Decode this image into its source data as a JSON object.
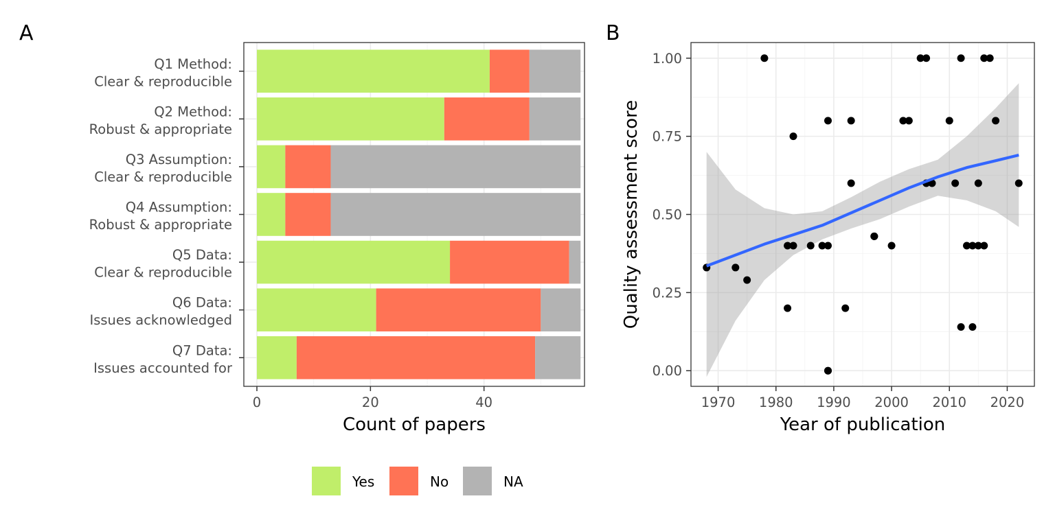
{
  "colors": {
    "yes": "#c0ee6a",
    "no": "#ff7355",
    "na": "#b3b3b3",
    "smooth_line": "#3366ff",
    "ribbon": "#999999",
    "point": "#000000",
    "grid_major": "#ebebeb",
    "grid_minor": "#f4f4f4",
    "panel_border": "#333333"
  },
  "chart_data": [
    {
      "panel": "A",
      "type": "bar",
      "orientation": "horizontal",
      "stacked": true,
      "xlabel": "Count of papers",
      "ylabel": "",
      "xlim": [
        -2.3,
        57.7
      ],
      "xticks": [
        0,
        20,
        40
      ],
      "grid": true,
      "legend_position": "bottom",
      "categories": [
        [
          "Q1 Method:",
          "Clear & reproducible"
        ],
        [
          "Q2 Method:",
          "Robust & appropriate"
        ],
        [
          "Q3 Assumption:",
          "Clear & reproducible"
        ],
        [
          "Q4 Assumption:",
          "Robust & appropriate"
        ],
        [
          "Q5 Data:",
          "Clear & reproducible"
        ],
        [
          "Q6 Data:",
          "Issues acknowledged"
        ],
        [
          "Q7 Data:",
          "Issues accounted for"
        ]
      ],
      "series": [
        {
          "name": "Yes",
          "color_key": "yes",
          "values": [
            41,
            33,
            5,
            5,
            34,
            21,
            7
          ]
        },
        {
          "name": "No",
          "color_key": "no",
          "values": [
            7,
            15,
            8,
            8,
            21,
            29,
            42
          ]
        },
        {
          "name": "NA",
          "color_key": "na",
          "values": [
            9,
            9,
            44,
            44,
            2,
            7,
            8
          ]
        }
      ]
    },
    {
      "panel": "B",
      "type": "scatter",
      "xlabel": "Year of publication",
      "ylabel": "Quality assessment score",
      "xlim": [
        1965.3,
        2024.7
      ],
      "ylim": [
        -0.05,
        1.05
      ],
      "xticks": [
        1970,
        1980,
        1990,
        2000,
        2010,
        2020
      ],
      "yticks": [
        "0.00",
        "0.25",
        "0.50",
        "0.75",
        "1.00"
      ],
      "grid": true,
      "points": [
        [
          1968,
          0.33
        ],
        [
          1973,
          0.33
        ],
        [
          1975,
          0.29
        ],
        [
          1978,
          1.0
        ],
        [
          1982,
          0.4
        ],
        [
          1982,
          0.2
        ],
        [
          1983,
          0.75
        ],
        [
          1983,
          0.4
        ],
        [
          1986,
          0.4
        ],
        [
          1988,
          0.4
        ],
        [
          1989,
          0.8
        ],
        [
          1989,
          0.4
        ],
        [
          1989,
          0.0
        ],
        [
          1989,
          0.0
        ],
        [
          1992,
          0.2
        ],
        [
          1993,
          0.8
        ],
        [
          1993,
          0.6
        ],
        [
          1997,
          0.43
        ],
        [
          1997,
          0.43
        ],
        [
          2000,
          0.4
        ],
        [
          2002,
          0.8
        ],
        [
          2003,
          0.8
        ],
        [
          2005,
          1.0
        ],
        [
          2006,
          1.0
        ],
        [
          2006,
          0.6
        ],
        [
          2007,
          0.6
        ],
        [
          2010,
          0.8
        ],
        [
          2011,
          0.6
        ],
        [
          2012,
          1.0
        ],
        [
          2012,
          0.14
        ],
        [
          2013,
          0.4
        ],
        [
          2014,
          0.4
        ],
        [
          2014,
          0.14
        ],
        [
          2015,
          0.4
        ],
        [
          2015,
          0.6
        ],
        [
          2016,
          1.0
        ],
        [
          2016,
          0.4
        ],
        [
          2017,
          1.0
        ],
        [
          2018,
          0.8
        ],
        [
          2022,
          0.6
        ]
      ],
      "smooth": {
        "x": [
          1968,
          1973,
          1978,
          1983,
          1988,
          1993,
          1998,
          2003,
          2008,
          2013,
          2018,
          2022
        ],
        "y": [
          0.335,
          0.37,
          0.405,
          0.435,
          0.465,
          0.505,
          0.545,
          0.585,
          0.62,
          0.65,
          0.672,
          0.69
        ],
        "lower": [
          -0.02,
          0.16,
          0.29,
          0.37,
          0.42,
          0.455,
          0.485,
          0.525,
          0.56,
          0.545,
          0.51,
          0.46
        ],
        "upper": [
          0.7,
          0.58,
          0.52,
          0.5,
          0.51,
          0.555,
          0.605,
          0.645,
          0.675,
          0.75,
          0.84,
          0.92
        ]
      }
    }
  ]
}
